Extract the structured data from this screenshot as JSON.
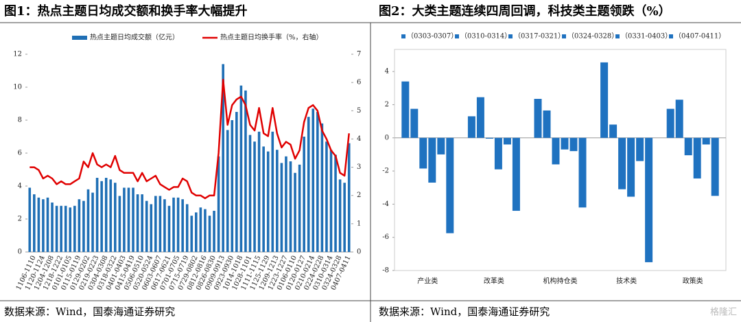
{
  "chart_data": [
    {
      "type": "bar",
      "title": "图1：热点主题日均成交额和换手率大幅提升",
      "source": "数据来源：Wind，国泰海通证券研究",
      "categories": [
        null,
        "1106-1110",
        null,
        "1120-1124",
        null,
        "1204-1208",
        null,
        "1218-1222",
        null,
        "0101-0105",
        null,
        "0115-0119",
        null,
        "0129-0202",
        null,
        "0219-0223",
        null,
        "0304-0308",
        null,
        "0318-0322",
        null,
        "0401-0403",
        null,
        "0415-0419",
        null,
        "0506-0510",
        null,
        "0520-0524",
        null,
        "0603-0607",
        null,
        "0617-0621",
        null,
        "0701-0705",
        null,
        "0715-0719",
        null,
        "0729-0802",
        null,
        "0812-0816",
        null,
        "0826-0830",
        null,
        "0909-0913",
        null,
        "0923-0930",
        null,
        "1014-1018",
        null,
        "1028-1101",
        null,
        "1111-1115",
        null,
        "1125-1129",
        null,
        "1209-1213",
        null,
        "1223-1227",
        null,
        "0106-0110",
        null,
        "0120-0127",
        null,
        "0210-0214",
        null,
        "0224-0228",
        null,
        "0310-0314",
        null,
        "0324-0328",
        null,
        "0407-0411"
      ],
      "series": [
        {
          "name": "热点主题日均成交额（亿元）",
          "type": "bar",
          "color": "#1f6fb5",
          "values": [
            3.9,
            3.5,
            3.3,
            3.2,
            3.3,
            3.0,
            2.8,
            2.8,
            2.8,
            2.7,
            2.8,
            3.2,
            3.1,
            3.8,
            3.6,
            4.5,
            4.3,
            4.5,
            4.4,
            4.2,
            3.4,
            3.9,
            3.9,
            3.9,
            3.5,
            3.5,
            3.1,
            2.9,
            3.4,
            3.4,
            3.2,
            2.8,
            3.3,
            3.3,
            3.2,
            2.9,
            2.2,
            2.4,
            2.7,
            2.6,
            2.2,
            2.5,
            5.8,
            11.4,
            7.4,
            8.0,
            8.5,
            10.1,
            9.8,
            7.1,
            6.7,
            7.3,
            6.4,
            6.1,
            7.3,
            6.2,
            5.4,
            5.8,
            5.5,
            4.8,
            5.3,
            7.0,
            8.2,
            8.7,
            8.5,
            7.8,
            6.7,
            6.2,
            5.9,
            4.4,
            4.2,
            6.6
          ]
        },
        {
          "name": "热点主题日均换手率（%，右轴）",
          "type": "line",
          "axis": "y2",
          "color": "#e00000",
          "values": [
            3.0,
            3.0,
            2.9,
            2.6,
            2.7,
            2.6,
            2.4,
            2.5,
            2.4,
            2.4,
            2.5,
            2.6,
            3.2,
            3.0,
            3.5,
            3.1,
            3.0,
            3.1,
            3.0,
            3.4,
            2.9,
            2.8,
            2.8,
            2.8,
            2.5,
            2.8,
            2.5,
            2.6,
            2.7,
            2.4,
            2.3,
            2.2,
            2.3,
            2.3,
            2.6,
            2.5,
            2.1,
            2.0,
            2.0,
            1.9,
            2.0,
            2.0,
            3.5,
            6.1,
            4.5,
            5.2,
            5.4,
            5.5,
            5.2,
            4.5,
            4.3,
            5.1,
            4.2,
            4.1,
            5.1,
            4.2,
            3.7,
            3.9,
            3.8,
            3.3,
            3.6,
            4.6,
            5.1,
            5.2,
            5.0,
            4.3,
            4.0,
            3.6,
            3.4,
            2.8,
            2.7,
            4.2
          ]
        }
      ],
      "ylim": [
        0,
        12
      ],
      "yticks": [
        0,
        2,
        4,
        6,
        8,
        10,
        12
      ],
      "y2lim": [
        0,
        7
      ],
      "y2ticks": [
        0,
        1,
        2,
        3,
        4,
        5,
        6,
        7
      ],
      "grid": false
    },
    {
      "type": "bar",
      "title": "图2：大类主题连续四周回调，科技类主题领跌（%）",
      "source": "数据来源：Wind，国泰海通证券研究",
      "categories": [
        "产业类",
        "改革类",
        "机构持仓类",
        "技术类",
        "政策类"
      ],
      "series": [
        {
          "name": "（0303-0307）",
          "color": "#1f72c0",
          "values": [
            3.4,
            1.3,
            2.35,
            4.55,
            1.75
          ]
        },
        {
          "name": "（0310-0314）",
          "color": "#1f72c0",
          "values": [
            1.75,
            2.45,
            1.65,
            0.8,
            2.3
          ]
        },
        {
          "name": "（0317-0321）",
          "color": "#1f72c0",
          "values": [
            -1.85,
            -0.05,
            -1.6,
            -3.1,
            -1.05
          ]
        },
        {
          "name": "（0324-0328）",
          "color": "#1f72c0",
          "values": [
            -2.7,
            -1.9,
            -0.7,
            -3.55,
            -2.45
          ]
        },
        {
          "name": "（0331-0403）",
          "color": "#1f72c0",
          "values": [
            -1.0,
            -0.4,
            -0.8,
            -1.4,
            -0.4
          ]
        },
        {
          "name": "（0407-0411）",
          "color": "#1f72c0",
          "values": [
            -5.75,
            -4.4,
            -4.2,
            -7.5,
            -3.5
          ]
        }
      ],
      "ylim": [
        -8,
        5
      ],
      "yticks": [
        -8,
        -6,
        -4,
        -2,
        0,
        2,
        4
      ],
      "grid": false
    }
  ],
  "watermark": "格隆汇"
}
